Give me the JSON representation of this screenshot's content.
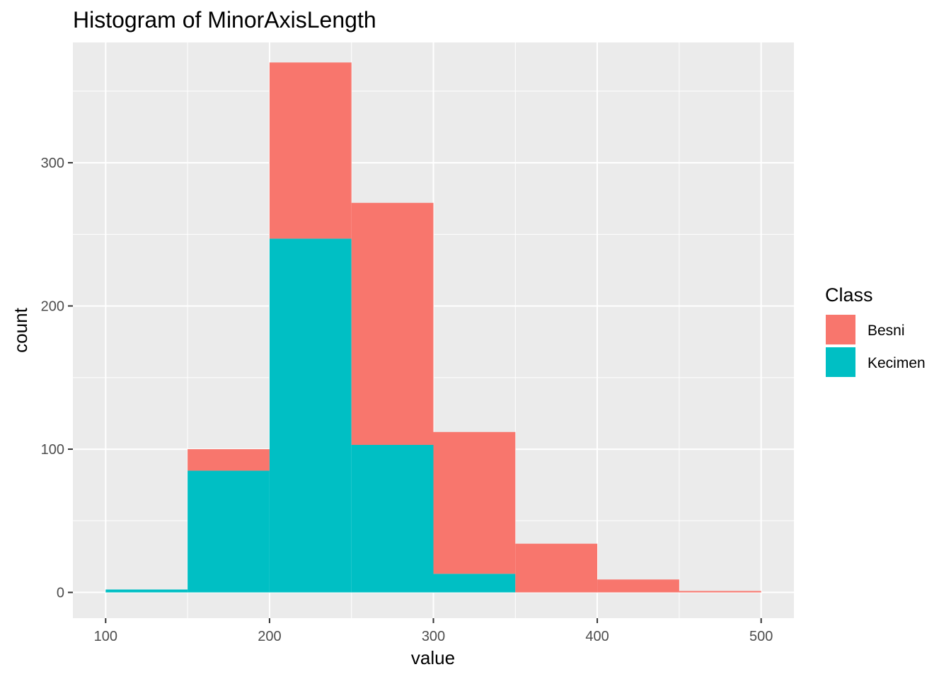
{
  "chart_data": {
    "type": "bar",
    "title": "Histogram of MinorAxisLength",
    "xlabel": "value",
    "ylabel": "count",
    "xlim": [
      80,
      520
    ],
    "ylim": [
      -18,
      384
    ],
    "x_ticks": [
      100,
      200,
      300,
      400,
      500
    ],
    "y_ticks": [
      0,
      100,
      200,
      300
    ],
    "bin_width": 50,
    "bin_edges": [
      100,
      150,
      200,
      250,
      300,
      350,
      400,
      450,
      500
    ],
    "stacked": true,
    "legend_title": "Class",
    "legend_position": "right",
    "grid": true,
    "series": [
      {
        "name": "Besni",
        "color": "#F8766D",
        "values": [
          0,
          15,
          123,
          169,
          99,
          34,
          9,
          1
        ]
      },
      {
        "name": "Kecimen",
        "color": "#00BFC4",
        "values": [
          2,
          85,
          247,
          103,
          13,
          0,
          0,
          0
        ]
      }
    ],
    "panel_background": "#EBEBEB",
    "grid_color": "#FFFFFF"
  }
}
